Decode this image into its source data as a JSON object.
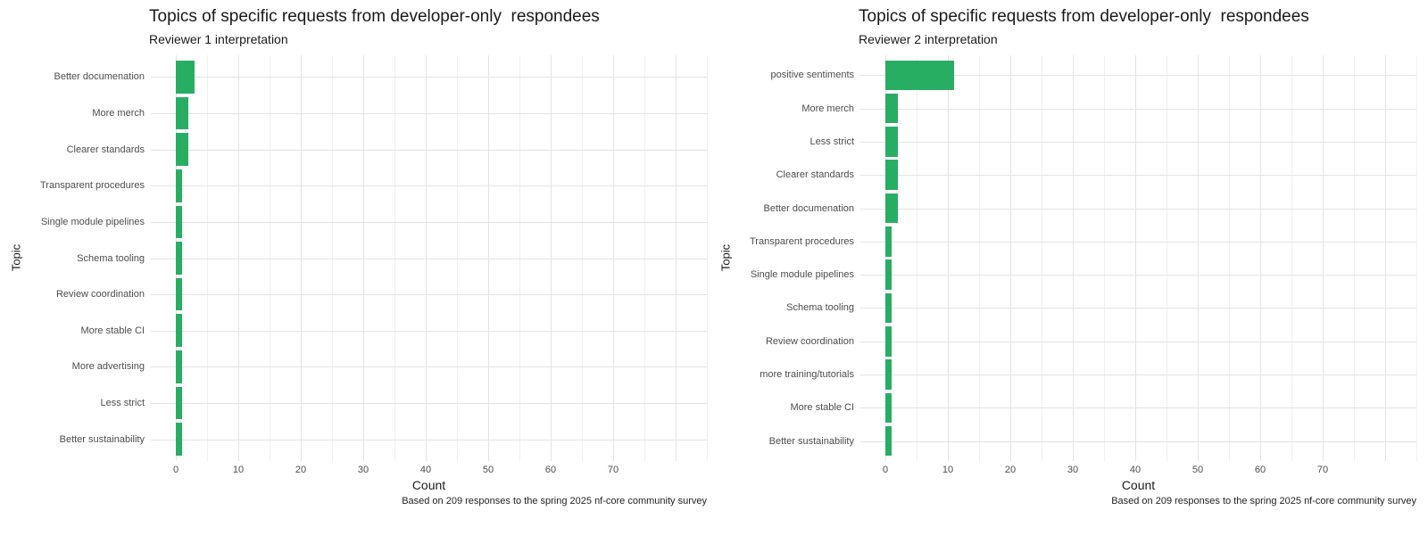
{
  "page": {
    "background": "#ffffff"
  },
  "chart_data": [
    {
      "type": "bar",
      "orientation": "horizontal",
      "title": "Topics of specific requests from developer-only  respondees",
      "subtitle": "Reviewer 1 interpretation",
      "xlabel": "Count",
      "ylabel": "Topic",
      "caption": "Based on 209 responses to the spring 2025 nf-core community survey",
      "categories": [
        "Better documenation",
        "More merch",
        "Clearer standards",
        "Transparent procedures",
        "Single module pipelines",
        "Schema tooling",
        "Review coordination",
        "More stable CI",
        "More advertising",
        "Less strict",
        "Better sustainability"
      ],
      "values": [
        3,
        2,
        2,
        1,
        1,
        1,
        1,
        1,
        1,
        1,
        1
      ],
      "bar_color": "#28ae63",
      "xlim": [
        0,
        78
      ],
      "x_tick_labels": [
        0,
        10,
        20,
        30,
        40,
        50,
        60,
        70
      ],
      "x_major_gridlines": [
        0,
        10,
        20,
        30,
        40,
        50,
        60,
        70,
        80
      ],
      "x_minor_gridlines": [
        5,
        15,
        25,
        35,
        45,
        55,
        65,
        75,
        85
      ],
      "grid": true,
      "legend": "none"
    },
    {
      "type": "bar",
      "orientation": "horizontal",
      "title": "Topics of specific requests from developer-only  respondees",
      "subtitle": "Reviewer 2 interpretation",
      "xlabel": "Count",
      "ylabel": "Topic",
      "caption": "Based on 209 responses to the spring 2025 nf-core community survey",
      "categories": [
        "positive sentiments",
        "More merch",
        "Less strict",
        "Clearer standards",
        "Better documenation",
        "Transparent procedures",
        "Single module pipelines",
        "Schema tooling",
        "Review coordination",
        "more training/tutorials",
        "More stable CI",
        "Better sustainability"
      ],
      "values": [
        11,
        2,
        2,
        2,
        2,
        1,
        1,
        1,
        1,
        1,
        1,
        1
      ],
      "bar_color": "#28ae63",
      "xlim": [
        0,
        78
      ],
      "x_tick_labels": [
        0,
        10,
        20,
        30,
        40,
        50,
        60,
        70
      ],
      "x_major_gridlines": [
        0,
        10,
        20,
        30,
        40,
        50,
        60,
        70,
        80
      ],
      "x_minor_gridlines": [
        5,
        15,
        25,
        35,
        45,
        55,
        65,
        75,
        85
      ],
      "grid": true,
      "legend": "none"
    }
  ]
}
